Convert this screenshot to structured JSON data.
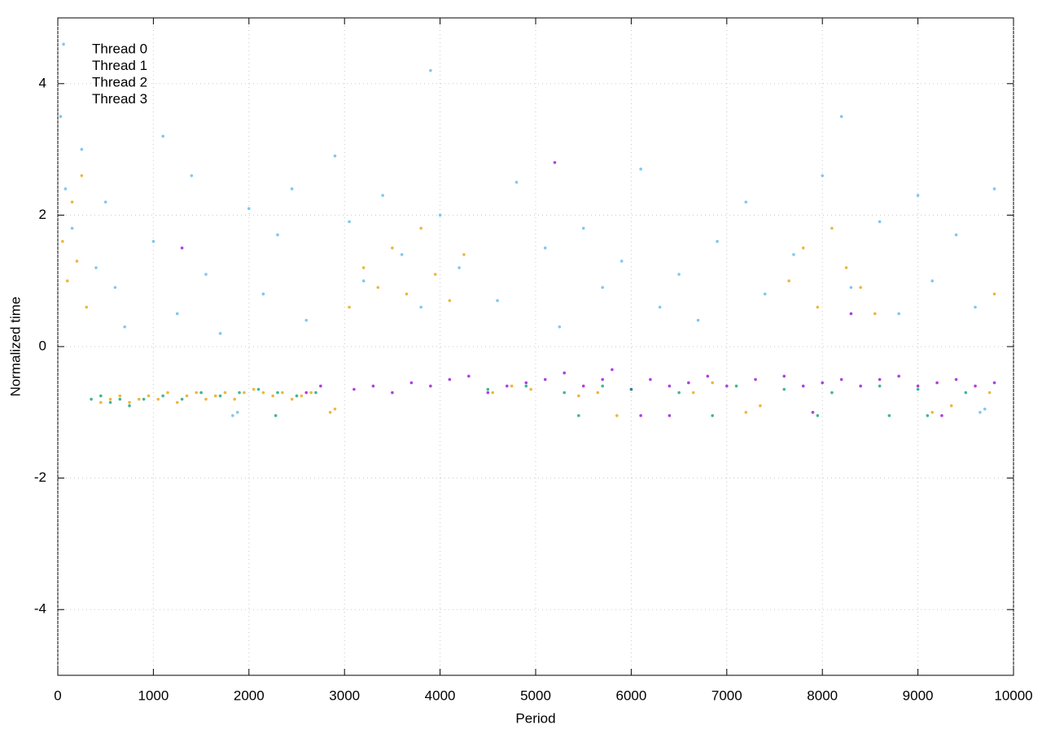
{
  "chart_data": {
    "type": "scatter",
    "x_label": "Period",
    "y_label": "Normalized time",
    "xlim": [
      0,
      10000
    ],
    "ylim": [
      -5,
      5
    ],
    "xticks": [
      0,
      1000,
      2000,
      3000,
      4000,
      5000,
      6000,
      7000,
      8000,
      9000,
      10000
    ],
    "yticks": [
      -4,
      -2,
      0,
      2,
      4
    ],
    "grid": true,
    "legend": "top-left",
    "series": [
      {
        "name": "Thread 0",
        "color": "#9400d3",
        "x": [
          2600,
          2750,
          3100,
          3300,
          3500,
          3700,
          3900,
          4100,
          4300,
          4500,
          4700,
          4900,
          5100,
          5300,
          5500,
          5700,
          5800,
          6000,
          6200,
          6400,
          6600,
          6800,
          7000,
          7300,
          7600,
          7800,
          8000,
          8200,
          8400,
          8600,
          8800,
          9000,
          9200,
          9400,
          9600,
          9800,
          6100,
          6400,
          7900,
          9250,
          1300,
          5200,
          8300
        ],
        "values": [
          -0.7,
          -0.6,
          -0.65,
          -0.6,
          -0.7,
          -0.55,
          -0.6,
          -0.5,
          -0.45,
          -0.7,
          -0.6,
          -0.55,
          -0.5,
          -0.4,
          -0.6,
          -0.5,
          -0.35,
          -0.65,
          -0.5,
          -0.6,
          -0.55,
          -0.45,
          -0.6,
          -0.5,
          -0.45,
          -0.6,
          -0.55,
          -0.5,
          -0.6,
          -0.5,
          -0.45,
          -0.6,
          -0.55,
          -0.5,
          -0.6,
          -0.55,
          -1.05,
          -1.05,
          -1.0,
          -1.05,
          1.5,
          2.8,
          0.5
        ]
      },
      {
        "name": "Thread 1",
        "color": "#009e73",
        "x": [
          350,
          450,
          550,
          650,
          750,
          900,
          1100,
          1300,
          1500,
          1700,
          1900,
          2100,
          2300,
          2500,
          2700,
          4500,
          4900,
          5300,
          5700,
          6000,
          6500,
          7100,
          7600,
          8100,
          8600,
          9000,
          9500,
          2280,
          5450,
          6850,
          7950,
          8700,
          9100
        ],
        "values": [
          -0.8,
          -0.75,
          -0.85,
          -0.8,
          -0.9,
          -0.8,
          -0.75,
          -0.8,
          -0.7,
          -0.75,
          -0.7,
          -0.65,
          -0.7,
          -0.75,
          -0.7,
          -0.65,
          -0.6,
          -0.7,
          -0.6,
          -0.65,
          -0.7,
          -0.6,
          -0.65,
          -0.7,
          -0.6,
          -0.65,
          -0.7,
          -1.05,
          -1.05,
          -1.05,
          -1.05,
          -1.05,
          -1.05
        ]
      },
      {
        "name": "Thread 2",
        "color": "#56b4e9",
        "x": [
          30,
          80,
          150,
          250,
          400,
          500,
          600,
          700,
          1000,
          1100,
          1250,
          1400,
          1550,
          1700,
          2000,
          2150,
          2300,
          2450,
          2600,
          2900,
          3050,
          3200,
          3400,
          3600,
          3800,
          4000,
          4200,
          4600,
          4800,
          5100,
          5250,
          5500,
          5700,
          5900,
          6100,
          6300,
          6500,
          6700,
          6900,
          7200,
          7400,
          7700,
          8000,
          8300,
          8600,
          8800,
          9000,
          9150,
          9400,
          9600,
          9800,
          1830,
          1880,
          9650,
          9700,
          3900,
          60,
          8200
        ],
        "values": [
          3.5,
          2.4,
          1.8,
          3.0,
          1.2,
          2.2,
          0.9,
          0.3,
          1.6,
          3.2,
          0.5,
          2.6,
          1.1,
          0.2,
          2.1,
          0.8,
          1.7,
          2.4,
          0.4,
          2.9,
          1.9,
          1.0,
          2.3,
          1.4,
          0.6,
          2.0,
          1.2,
          0.7,
          2.5,
          1.5,
          0.3,
          1.8,
          0.9,
          1.3,
          2.7,
          0.6,
          1.1,
          0.4,
          1.6,
          2.2,
          0.8,
          1.4,
          2.6,
          0.9,
          1.9,
          0.5,
          2.3,
          1.0,
          1.7,
          0.6,
          2.4,
          -1.05,
          -1.0,
          -1.0,
          -0.95,
          4.2,
          4.6,
          3.5
        ]
      },
      {
        "name": "Thread 3",
        "color": "#e69f00",
        "x": [
          50,
          100,
          150,
          200,
          250,
          300,
          450,
          550,
          650,
          750,
          850,
          950,
          1050,
          1150,
          1250,
          1350,
          1450,
          1550,
          1650,
          1750,
          1850,
          1950,
          2050,
          2150,
          2250,
          2350,
          2450,
          2550,
          2650,
          2850,
          2900,
          3050,
          3200,
          3350,
          3500,
          3650,
          3800,
          3950,
          4100,
          4250,
          4550,
          4750,
          4950,
          5450,
          5650,
          5850,
          6650,
          6850,
          7200,
          7350,
          7650,
          7800,
          7950,
          8100,
          8250,
          8400,
          8550,
          9150,
          9350,
          9750,
          9800
        ],
        "values": [
          1.6,
          1.0,
          2.2,
          1.3,
          2.6,
          0.6,
          -0.85,
          -0.8,
          -0.75,
          -0.85,
          -0.8,
          -0.75,
          -0.8,
          -0.7,
          -0.85,
          -0.75,
          -0.7,
          -0.8,
          -0.75,
          -0.7,
          -0.8,
          -0.7,
          -0.65,
          -0.7,
          -0.75,
          -0.7,
          -0.8,
          -0.75,
          -0.7,
          -1.0,
          -0.95,
          0.6,
          1.2,
          0.9,
          1.5,
          0.8,
          1.8,
          1.1,
          0.7,
          1.4,
          -0.7,
          -0.6,
          -0.65,
          -0.75,
          -0.7,
          -1.05,
          -0.7,
          -0.55,
          -1.0,
          -0.9,
          1.0,
          1.5,
          0.6,
          1.8,
          1.2,
          0.9,
          0.5,
          -1.0,
          -0.9,
          -0.7,
          0.8
        ]
      }
    ]
  }
}
